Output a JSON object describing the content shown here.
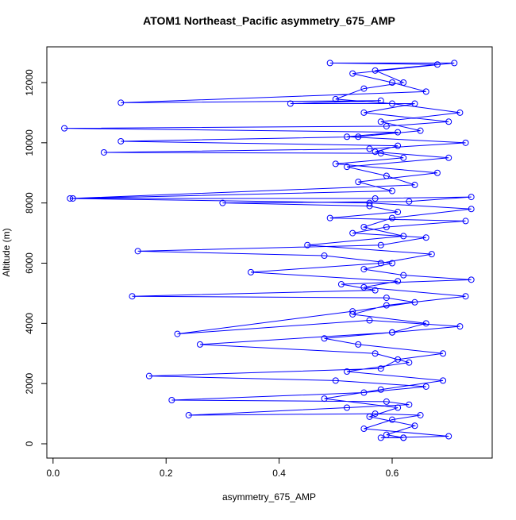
{
  "chart_data": {
    "type": "line",
    "title": "ATOM1 Northeast_Pacific asymmetry_675_AMP",
    "x_label": "asymmetry_675_AMP",
    "y_label": "Altitude (m)",
    "color": "#0000ff",
    "markers": true,
    "grid": false,
    "xlim": [
      -0.011,
      0.777
    ],
    "ylim": [
      -475,
      13187
    ],
    "xticks": [
      {
        "value": 0,
        "label": "0.0"
      },
      0.2,
      0.4,
      0.6
    ],
    "yticks": [
      0,
      2000,
      4000,
      6000,
      8000,
      10000,
      12000
    ],
    "x": [
      0.62,
      0.58,
      0.7,
      0.55,
      0.6,
      0.65,
      0.57,
      0.24,
      0.52,
      0.63,
      0.59,
      0.21,
      0.55,
      0.66,
      0.5,
      0.17,
      0.58,
      0.61,
      0.69,
      0.54,
      0.48,
      0.6,
      0.72,
      0.56,
      0.22,
      0.53,
      0.64,
      0.59,
      0.14,
      0.57,
      0.51,
      0.74,
      0.62,
      0.55,
      0.6,
      0.48,
      0.15,
      0.58,
      0.66,
      0.53,
      0.59,
      0.73,
      0.49,
      0.61,
      0.56,
      0.3,
      0.63,
      0.74,
      0.57,
      0.035,
      0.6,
      0.54,
      0.68,
      0.5,
      0.62,
      0.58,
      0.09,
      0.56,
      0.73,
      0.52,
      0.61,
      0.02,
      0.59,
      0.7,
      0.55,
      0.64,
      0.42,
      0.58,
      0.12,
      0.66,
      0.6,
      0.53,
      0.71,
      0.49,
      0.68,
      0.57,
      0.62,
      0.55,
      0.5,
      0.6,
      0.72,
      0.58,
      0.65,
      0.54,
      0.12,
      0.61,
      0.57,
      0.7,
      0.52,
      0.59,
      0.64,
      0.03,
      0.56,
      0.74,
      0.6,
      0.55,
      0.62,
      0.45,
      0.67,
      0.58,
      0.35,
      0.61,
      0.55,
      0.73,
      0.59,
      0.53,
      0.66,
      0.6,
      0.26,
      0.57,
      0.63,
      0.52,
      0.69,
      0.58,
      0.48,
      0.61,
      0.56,
      0.64,
      0.59,
      0.62
    ],
    "values": [
      200,
      200,
      250,
      500,
      800,
      950,
      1000,
      950,
      1200,
      1300,
      1400,
      1450,
      1700,
      1900,
      2100,
      2250,
      2500,
      2800,
      3000,
      3300,
      3500,
      3700,
      3900,
      4100,
      3650,
      4400,
      4700,
      4850,
      4900,
      5100,
      5300,
      5450,
      5600,
      5800,
      6000,
      6250,
      6400,
      6600,
      6850,
      7000,
      7200,
      7400,
      7500,
      7700,
      7900,
      8000,
      8050,
      8200,
      8150,
      8150,
      8400,
      8700,
      9000,
      9300,
      9500,
      9650,
      9680,
      9800,
      10000,
      10200,
      10350,
      10480,
      10550,
      10700,
      11000,
      11300,
      11300,
      11400,
      11330,
      11700,
      12000,
      12300,
      12650,
      12650,
      12600,
      12400,
      12000,
      11800,
      11450,
      11300,
      11000,
      10700,
      10400,
      10200,
      10050,
      9900,
      9700,
      9500,
      9200,
      8900,
      8600,
      8150,
      8000,
      7800,
      7500,
      7200,
      6900,
      6600,
      6300,
      6000,
      5700,
      5400,
      5200,
      4900,
      4600,
      4300,
      4000,
      3700,
      3300,
      3000,
      2700,
      2400,
      2100,
      1800,
      1500,
      1200,
      900,
      600,
      300,
      200
    ]
  }
}
